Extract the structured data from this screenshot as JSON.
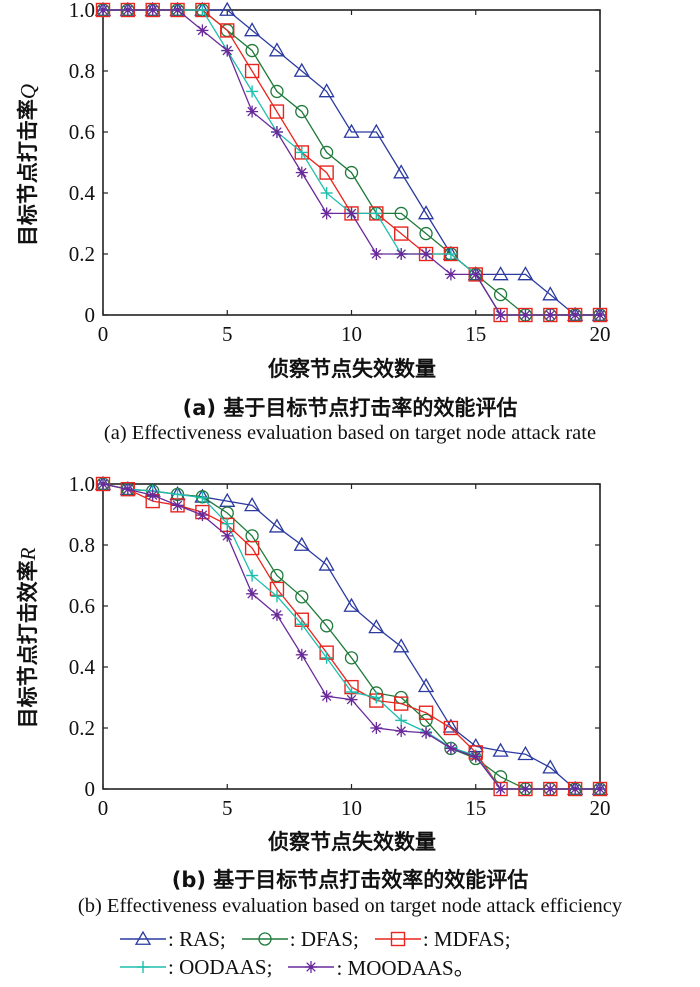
{
  "chart_data": [
    {
      "type": "line",
      "panel": "a",
      "xlabel": "侦察节点失效数量",
      "ylabel": "目标节点打击率Q",
      "ylabel_main": "目标节点打击率",
      "ylabel_var": "Q",
      "caption_cn": "(a) 基于目标节点打击率的效能评估",
      "caption_en": "(a) Effectiveness evaluation based on target node attack rate",
      "xlim": [
        0,
        20
      ],
      "ylim": [
        0,
        1
      ],
      "xticks": [
        0,
        5,
        10,
        15,
        20
      ],
      "xtick_labels": [
        "0",
        "5",
        "10",
        "15",
        "20"
      ],
      "yticks": [
        0,
        0.2,
        0.4,
        0.6,
        0.8,
        1.0
      ],
      "ytick_labels": [
        "0",
        "0.2",
        "0.4",
        "0.6",
        "0.8",
        "1.0"
      ],
      "grid": false,
      "x": [
        0,
        1,
        2,
        3,
        4,
        5,
        6,
        7,
        8,
        9,
        10,
        11,
        12,
        13,
        14,
        15,
        16,
        17,
        18,
        19,
        20
      ],
      "series": [
        {
          "name": "RAS",
          "values": [
            1,
            1,
            1,
            1,
            1,
            1,
            0.933,
            0.867,
            0.8,
            0.733,
            0.6,
            0.6,
            0.467,
            0.333,
            0.2,
            0.133,
            0.133,
            0.133,
            0.067,
            0,
            0
          ]
        },
        {
          "name": "DFAS",
          "values": [
            1,
            1,
            1,
            1,
            1,
            0.933,
            0.867,
            0.733,
            0.667,
            0.533,
            0.467,
            0.333,
            0.333,
            0.267,
            0.2,
            0.133,
            0.067,
            0,
            0,
            0,
            0
          ]
        },
        {
          "name": "MDFAS",
          "values": [
            1,
            1,
            1,
            1,
            1,
            0.933,
            0.8,
            0.667,
            0.533,
            0.467,
            0.333,
            0.333,
            0.267,
            0.2,
            0.2,
            0.133,
            0,
            0,
            0,
            0,
            0
          ]
        },
        {
          "name": "OODAAS",
          "values": [
            1,
            1,
            1,
            1,
            1,
            0.867,
            0.733,
            0.6,
            0.533,
            0.4,
            0.333,
            0.333,
            0.2,
            0.2,
            0.2,
            0.133,
            0,
            0,
            0,
            0,
            0
          ]
        },
        {
          "name": "MOODAAS",
          "values": [
            1,
            1,
            1,
            1,
            0.933,
            0.867,
            0.667,
            0.6,
            0.467,
            0.333,
            0.333,
            0.2,
            0.2,
            0.2,
            0.133,
            0.133,
            0,
            0,
            0,
            0,
            0
          ]
        }
      ]
    },
    {
      "type": "line",
      "panel": "b",
      "xlabel": "侦察节点失效数量",
      "ylabel": "目标节点打击效率R",
      "ylabel_main": "目标节点打击效率",
      "ylabel_var": "R",
      "caption_cn": "(b) 基于目标节点打击效率的效能评估",
      "caption_en": "(b) Effectiveness evaluation based on target node attack efficiency",
      "xlim": [
        0,
        20
      ],
      "ylim": [
        0,
        1
      ],
      "xticks": [
        0,
        5,
        10,
        15,
        20
      ],
      "xtick_labels": [
        "0",
        "5",
        "10",
        "15",
        "20"
      ],
      "yticks": [
        0,
        0.2,
        0.4,
        0.6,
        0.8,
        1.0
      ],
      "ytick_labels": [
        "0",
        "0.2",
        "0.4",
        "0.6",
        "0.8",
        "1.0"
      ],
      "grid": false,
      "x": [
        0,
        1,
        2,
        3,
        4,
        5,
        6,
        7,
        8,
        9,
        10,
        11,
        12,
        13,
        14,
        15,
        16,
        17,
        18,
        19,
        20
      ],
      "series": [
        {
          "name": "RAS",
          "values": [
            1,
            0.983,
            0.977,
            0.966,
            0.958,
            0.944,
            0.93,
            0.86,
            0.8,
            0.735,
            0.6,
            0.53,
            0.467,
            0.337,
            0.204,
            0.14,
            0.125,
            0.114,
            0.07,
            0,
            0
          ]
        },
        {
          "name": "DFAS",
          "values": [
            1,
            0.983,
            0.977,
            0.966,
            0.958,
            0.905,
            0.83,
            0.7,
            0.63,
            0.535,
            0.43,
            0.315,
            0.3,
            0.225,
            0.133,
            0.1,
            0.04,
            0,
            0,
            0,
            0
          ]
        },
        {
          "name": "MDFAS",
          "values": [
            1,
            0.983,
            0.944,
            0.93,
            0.908,
            0.866,
            0.79,
            0.656,
            0.555,
            0.447,
            0.334,
            0.29,
            0.28,
            0.25,
            0.2,
            0.12,
            0,
            0,
            0,
            0,
            0
          ]
        },
        {
          "name": "OODAAS",
          "values": [
            1,
            0.983,
            0.977,
            0.966,
            0.955,
            0.87,
            0.7,
            0.632,
            0.54,
            0.43,
            0.318,
            0.3,
            0.225,
            0.187,
            0.136,
            0.11,
            0,
            0,
            0,
            0,
            0
          ]
        },
        {
          "name": "MOODAAS",
          "values": [
            1,
            0.983,
            0.963,
            0.93,
            0.898,
            0.83,
            0.64,
            0.571,
            0.44,
            0.304,
            0.293,
            0.2,
            0.19,
            0.184,
            0.133,
            0.106,
            0,
            0,
            0,
            0,
            0
          ]
        }
      ]
    }
  ],
  "series_style": [
    {
      "name": "RAS",
      "color": "#2b3aa0",
      "marker": "triangle"
    },
    {
      "name": "DFAS",
      "color": "#1f7a3a",
      "marker": "circle"
    },
    {
      "name": "MDFAS",
      "color": "#e8261f",
      "marker": "square"
    },
    {
      "name": "OODAAS",
      "color": "#1fbfae",
      "marker": "plus"
    },
    {
      "name": "MOODAAS",
      "color": "#6a2a9a",
      "marker": "asterisk"
    }
  ],
  "legend": {
    "position": "bottom-center",
    "items": [
      {
        "label": ": RAS;"
      },
      {
        "label": ": DFAS;"
      },
      {
        "label": ": MDFAS;"
      },
      {
        "label": ": OODAAS;"
      },
      {
        "label": ": MOODAAS。"
      }
    ]
  }
}
